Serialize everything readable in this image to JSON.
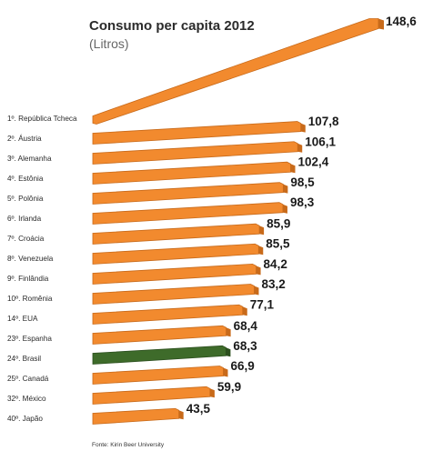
{
  "chart_data": {
    "type": "bar",
    "orientation": "horizontal",
    "title": "Consumo per capita 2012",
    "subtitle": "(Litros)",
    "source": "Fonte: Kirin Beer University",
    "categories": [
      "1º. República Tcheca",
      "2º. Áustria",
      "3º. Alemanha",
      "4º. Estônia",
      "5º. Polônia",
      "6º. Irlanda",
      "7º. Croácia",
      "8º. Venezuela",
      "9º. Finlândia",
      "10º. Romênia",
      "14º. EUA",
      "23º. Espanha",
      "24º. Brasil",
      "25º. Canadá",
      "32º. México",
      "40º. Japão"
    ],
    "values": [
      148.6,
      107.8,
      106.1,
      102.4,
      98.5,
      98.3,
      85.9,
      85.5,
      84.2,
      83.2,
      77.1,
      68.4,
      68.3,
      66.9,
      59.9,
      43.5
    ],
    "value_labels": [
      "148,6",
      "107,8",
      "106,1",
      "102,4",
      "98,5",
      "98,3",
      "85,9",
      "85,5",
      "84,2",
      "83,2",
      "77,1",
      "68,4",
      "68,3",
      "66,9",
      "59,9",
      "43,5"
    ],
    "highlight": "24º. Brasil",
    "colors": {
      "bar": "#f28a2e",
      "bar_edge": "#c86a1a",
      "highlight": "#3e6b2a",
      "highlight_edge": "#2c4f1e",
      "label": "#2a2a2a",
      "value": "#1a1a1a"
    },
    "grid": false,
    "legend": "none"
  }
}
